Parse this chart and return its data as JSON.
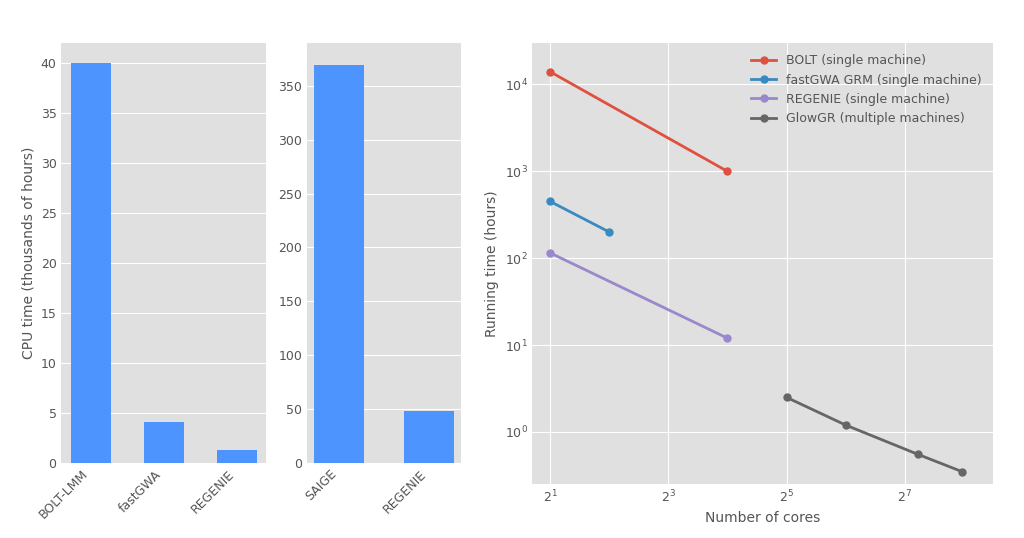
{
  "bar1_categories": [
    "BOLT-LMM",
    "fastGWA",
    "REGENIE"
  ],
  "bar1_values": [
    40,
    4.1,
    1.3
  ],
  "bar1_ylabel": "CPU time (thousands of hours)",
  "bar1_yticks": [
    0,
    5,
    10,
    15,
    20,
    25,
    30,
    35,
    40
  ],
  "bar2_categories": [
    "SAIGE",
    "REGENIE"
  ],
  "bar2_values": [
    370,
    48
  ],
  "bar2_ylabel": "Running time (hours)",
  "bar2_yticks": [
    0,
    50,
    100,
    150,
    200,
    250,
    300,
    350
  ],
  "bar_color": "#4d94ff",
  "line_xlabel": "Number of cores",
  "line_ylabel": "Running time (hours)",
  "line_series": [
    {
      "label": "BOLT (single machine)",
      "color": "#e05040",
      "x": [
        2,
        16
      ],
      "y": [
        14000,
        1000
      ],
      "marker": "o",
      "linewidth": 2.0
    },
    {
      "label": "fastGWA GRM (single machine)",
      "color": "#3a8abf",
      "x": [
        2,
        4
      ],
      "y": [
        450,
        200
      ],
      "marker": "o",
      "linewidth": 2.0
    },
    {
      "label": "REGENIE (single machine)",
      "color": "#9988cc",
      "x": [
        2,
        16
      ],
      "y": [
        115,
        12
      ],
      "marker": "o",
      "linewidth": 2.0
    },
    {
      "label": "GlowGR (multiple machines)",
      "color": "#666666",
      "x": [
        32,
        64,
        150,
        250
      ],
      "y": [
        2.5,
        1.2,
        0.55,
        0.35
      ],
      "marker": "o",
      "linewidth": 2.0
    }
  ],
  "line_ylim": [
    0.25,
    30000
  ],
  "plot_bg_color": "#e0e0e0",
  "fig_bg_color": "#ffffff",
  "legend_fontsize": 9,
  "tick_fontsize": 9,
  "label_fontsize": 10,
  "text_color": "#555555"
}
